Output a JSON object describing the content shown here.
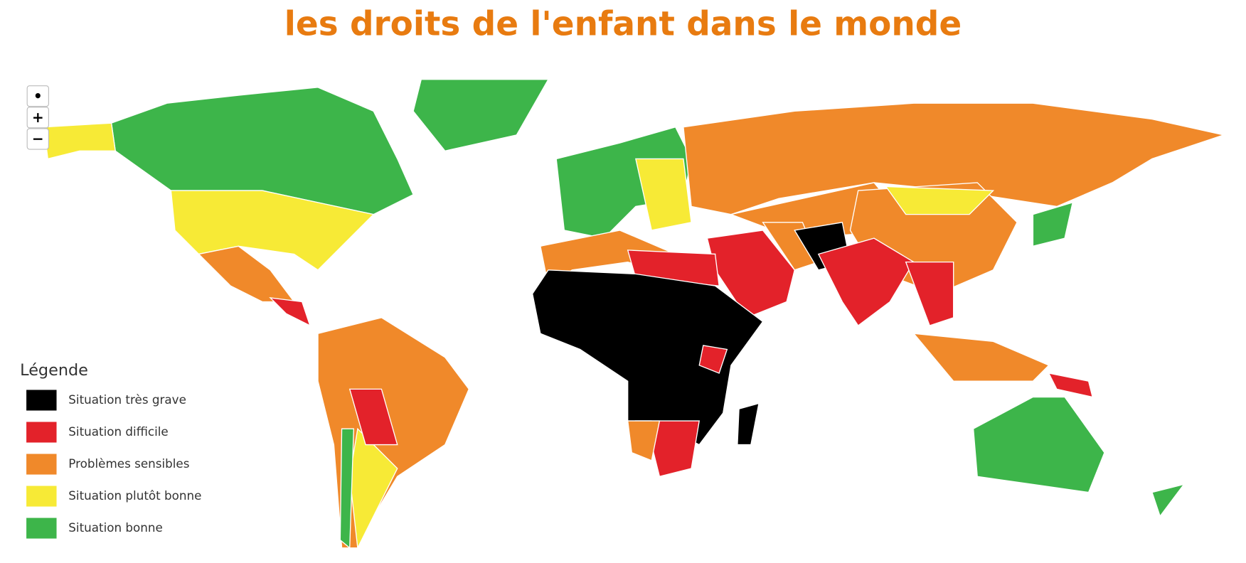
{
  "header": {
    "title": "les droits de l'enfant dans le monde"
  },
  "controls": [
    "•",
    "+",
    "−"
  ],
  "legend": {
    "title": "Légende",
    "items": [
      {
        "label": "Situation très grave",
        "color": "#000000"
      },
      {
        "label": "Situation difficile",
        "color": "#e3222a"
      },
      {
        "label": "Problèmes sensibles",
        "color": "#f0892a"
      },
      {
        "label": "Situation plutôt bonne",
        "color": "#f7ea36"
      },
      {
        "label": "Situation bonne",
        "color": "#3db54a"
      }
    ]
  }
}
